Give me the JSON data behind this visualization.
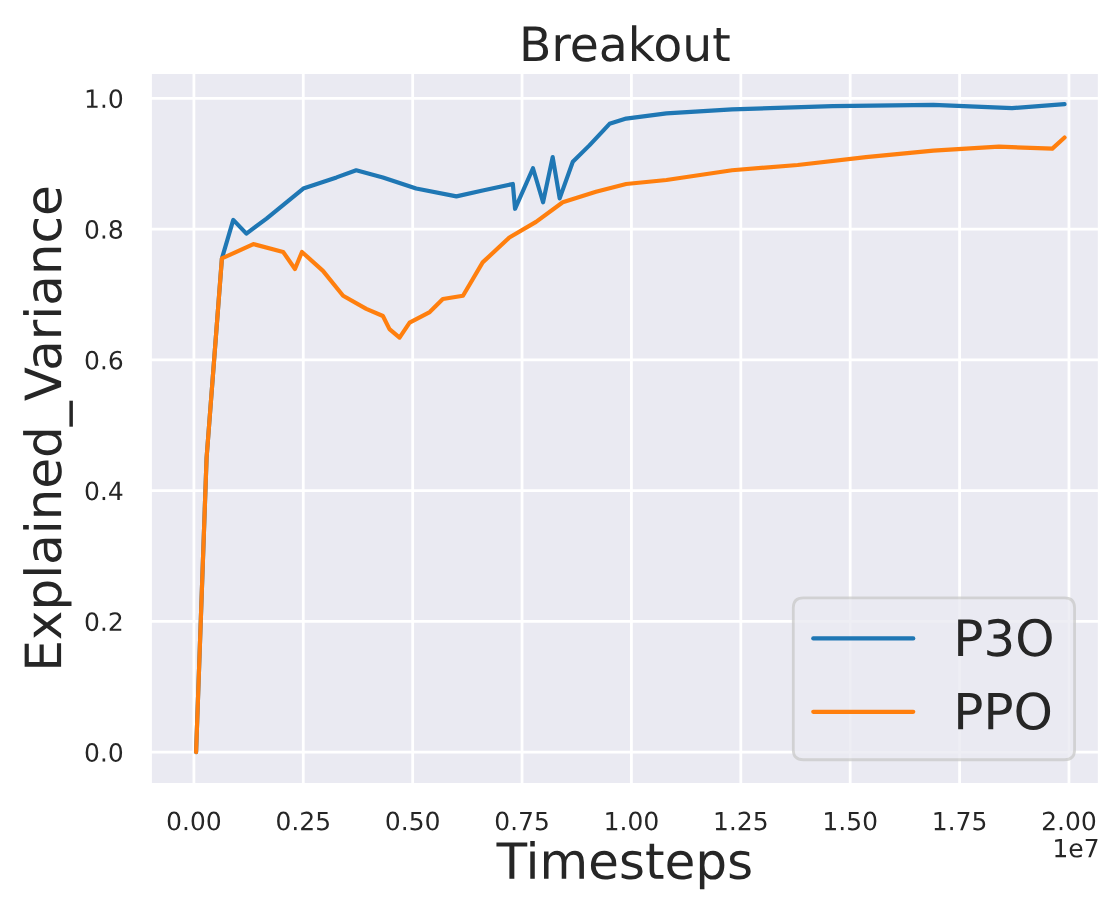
{
  "chart_data": {
    "type": "line",
    "title": "Breakout",
    "xlabel": "Timesteps",
    "ylabel": "Explained_Variance",
    "annotations": [
      "1e7"
    ],
    "xlim": [
      -0.1,
      2.07
    ],
    "ylim": [
      -0.05,
      1.04
    ],
    "xticks": [
      {
        "value": 0,
        "label": "0.00"
      },
      0.25,
      {
        "value": 0.5,
        "label": "0.50"
      },
      0.75,
      {
        "value": 1.0,
        "label": "1.00"
      },
      1.25,
      {
        "value": 1.5,
        "label": "1.50"
      },
      1.75,
      {
        "value": 2.0,
        "label": "2.00"
      }
    ],
    "yticks": [
      {
        "value": 0,
        "label": "0.0"
      },
      0.2,
      0.4,
      0.6,
      0.8,
      {
        "value": 1.0,
        "label": "1.0"
      }
    ],
    "grid": true,
    "legend": "bottom right",
    "line_style": "solid",
    "marker": "none",
    "series": [
      {
        "name": "P3O",
        "color": "#1f77b4",
        "x": [
          0.005,
          0.029,
          0.064,
          0.09,
          0.12,
          0.166,
          0.25,
          0.326,
          0.371,
          0.432,
          0.508,
          0.6,
          0.66,
          0.729,
          0.734,
          0.775,
          0.798,
          0.82,
          0.836,
          0.866,
          0.904,
          0.95,
          0.988,
          1.08,
          1.23,
          1.46,
          1.69,
          1.87,
          1.99
        ],
        "values": [
          0.0,
          0.45,
          0.755,
          0.814,
          0.793,
          0.816,
          0.862,
          0.879,
          0.89,
          0.879,
          0.862,
          0.85,
          0.859,
          0.869,
          0.831,
          0.893,
          0.841,
          0.91,
          0.847,
          0.903,
          0.928,
          0.961,
          0.969,
          0.977,
          0.983,
          0.988,
          0.99,
          0.985,
          0.991
        ]
      },
      {
        "name": "PPO",
        "color": "#ff7f0e",
        "x": [
          0.005,
          0.029,
          0.064,
          0.136,
          0.204,
          0.231,
          0.247,
          0.295,
          0.341,
          0.394,
          0.432,
          0.447,
          0.47,
          0.493,
          0.539,
          0.569,
          0.615,
          0.66,
          0.721,
          0.782,
          0.843,
          0.919,
          0.988,
          1.08,
          1.23,
          1.38,
          1.536,
          1.69,
          1.84,
          1.962,
          1.99
        ],
        "values": [
          0.0,
          0.45,
          0.755,
          0.777,
          0.765,
          0.739,
          0.765,
          0.736,
          0.698,
          0.678,
          0.667,
          0.647,
          0.634,
          0.657,
          0.673,
          0.693,
          0.698,
          0.749,
          0.787,
          0.811,
          0.841,
          0.857,
          0.869,
          0.875,
          0.89,
          0.898,
          0.91,
          0.92,
          0.926,
          0.923,
          0.94
        ]
      }
    ]
  }
}
